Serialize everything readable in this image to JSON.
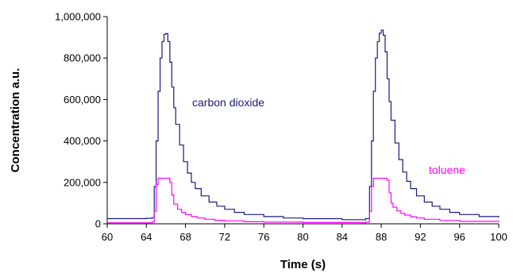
{
  "chart_data": {
    "type": "line",
    "title": "",
    "xlabel": "Time (s)",
    "ylabel": "Concentration a.u.",
    "xlim": [
      60,
      100
    ],
    "ylim": [
      0,
      1000000
    ],
    "x_ticks": [
      "60",
      "64",
      "68",
      "72",
      "76",
      "80",
      "84",
      "88",
      "92",
      "96",
      "100"
    ],
    "y_ticks": [
      "0",
      "200,000",
      "400,000",
      "600,000",
      "800,000",
      "1,000,000"
    ],
    "grid": false,
    "legend": "none",
    "annotations": [
      {
        "text": "carbon dioxide",
        "series": "carbon dioxide"
      },
      {
        "text": "toluene",
        "series": "toluene"
      }
    ],
    "series": [
      {
        "name": "carbon dioxide",
        "color": "#1a1a80",
        "x": [
          60,
          64,
          64.6,
          64.8,
          65.0,
          65.2,
          65.4,
          65.6,
          65.8,
          66.0,
          66.2,
          66.4,
          66.6,
          66.8,
          67.0,
          67.4,
          67.8,
          68.2,
          68.6,
          69.0,
          69.6,
          70.4,
          71.2,
          72.0,
          73.0,
          74.0,
          76.0,
          78.0,
          80.0,
          84.0,
          86.0,
          86.4,
          86.8,
          87.0,
          87.2,
          87.4,
          87.6,
          87.8,
          88.0,
          88.2,
          88.4,
          88.6,
          88.8,
          89.0,
          89.4,
          89.8,
          90.2,
          90.6,
          91.0,
          91.6,
          92.4,
          93.2,
          94.0,
          95.0,
          96.0,
          98.0,
          100.0
        ],
        "values": [
          25000,
          27000,
          30000,
          180000,
          400000,
          640000,
          800000,
          880000,
          915000,
          918000,
          880000,
          780000,
          660000,
          560000,
          480000,
          380000,
          300000,
          245000,
          200000,
          170000,
          135000,
          105000,
          85000,
          70000,
          55000,
          45000,
          35000,
          28000,
          25000,
          20000,
          20000,
          25000,
          180000,
          400000,
          640000,
          800000,
          880000,
          920000,
          935000,
          910000,
          830000,
          700000,
          590000,
          500000,
          390000,
          310000,
          250000,
          205000,
          170000,
          135000,
          105000,
          85000,
          70000,
          55000,
          45000,
          35000,
          30000
        ]
      },
      {
        "name": "toluene",
        "color": "#ff00ff",
        "x": [
          60,
          64,
          64.6,
          64.8,
          65.0,
          65.2,
          65.4,
          65.6,
          65.8,
          66.0,
          66.2,
          66.4,
          66.6,
          66.8,
          67.2,
          67.6,
          68.0,
          68.6,
          69.2,
          70.0,
          71.0,
          72.0,
          74.0,
          76.0,
          80.0,
          86.0,
          86.4,
          86.8,
          87.0,
          87.2,
          87.4,
          87.6,
          88.0,
          88.4,
          88.6,
          88.8,
          89.0,
          89.2,
          89.6,
          90.0,
          90.4,
          91.0,
          91.6,
          92.4,
          94.0,
          96.0,
          100.0
        ],
        "values": [
          5000,
          5000,
          8000,
          60000,
          190000,
          220000,
          220000,
          220000,
          220000,
          220000,
          220000,
          200000,
          140000,
          95000,
          70000,
          55000,
          45000,
          35000,
          28000,
          22000,
          17000,
          14000,
          10000,
          8000,
          6000,
          5000,
          8000,
          60000,
          180000,
          220000,
          220000,
          220000,
          220000,
          220000,
          210000,
          150000,
          100000,
          80000,
          62000,
          50000,
          42000,
          34000,
          28000,
          22000,
          16000,
          12000,
          8000
        ]
      }
    ]
  }
}
